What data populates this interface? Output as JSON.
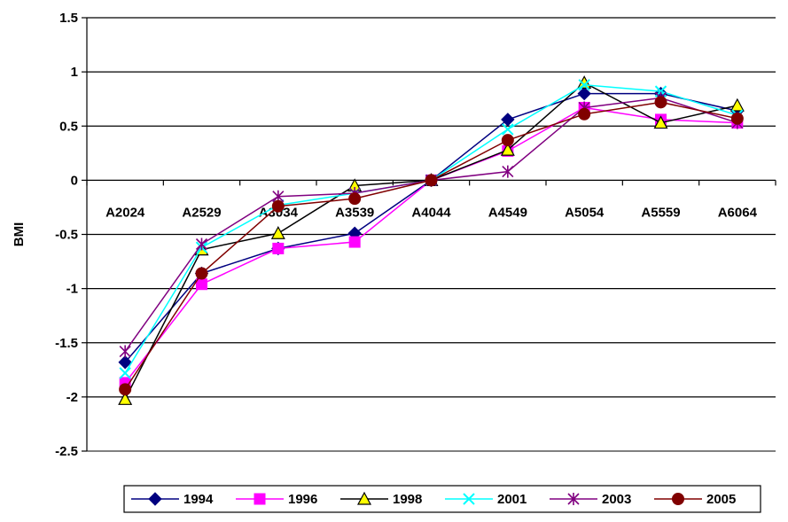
{
  "chart_data": {
    "type": "line",
    "title": "",
    "xlabel": "",
    "ylabel": "BMI",
    "ylim": [
      -2.5,
      1.5
    ],
    "yticks": [
      1.5,
      1,
      0.5,
      0,
      -0.5,
      -1,
      -1.5,
      -2,
      -2.5
    ],
    "ytick_labels": [
      "1.5",
      "1",
      "0.5",
      "0",
      "-0.5",
      "-1",
      "-1.5",
      "-2",
      "-2.5"
    ],
    "grid": "horizontal",
    "legend_position": "bottom",
    "categories": [
      "A2024",
      "A2529",
      "A3034",
      "A3539",
      "A4044",
      "A4549",
      "A5054",
      "A5559",
      "A6064"
    ],
    "series": [
      {
        "name": "1994",
        "color": "#000080",
        "marker": "diamond",
        "values": [
          -1.68,
          -0.86,
          -0.63,
          -0.49,
          0.0,
          0.56,
          0.8,
          0.8,
          0.64
        ]
      },
      {
        "name": "1996",
        "color": "#FF00FF",
        "marker": "square",
        "values": [
          -1.87,
          -0.96,
          -0.63,
          -0.57,
          0.0,
          0.27,
          0.67,
          0.56,
          0.53
        ]
      },
      {
        "name": "1998",
        "color": "#000000",
        "marker": "triangle",
        "values": [
          -2.02,
          -0.64,
          -0.49,
          -0.05,
          0.0,
          0.28,
          0.9,
          0.53,
          0.69
        ]
      },
      {
        "name": "2001",
        "color": "#00FFFF",
        "marker": "x",
        "values": [
          -1.78,
          -0.62,
          -0.23,
          -0.12,
          0.0,
          0.47,
          0.88,
          0.82,
          0.6
        ]
      },
      {
        "name": "2003",
        "color": "#800080",
        "marker": "star",
        "values": [
          -1.58,
          -0.59,
          -0.15,
          -0.12,
          0.0,
          0.08,
          0.67,
          0.76,
          0.53
        ]
      },
      {
        "name": "2005",
        "color": "#800000",
        "marker": "circle",
        "values": [
          -1.93,
          -0.86,
          -0.24,
          -0.17,
          0.0,
          0.37,
          0.61,
          0.72,
          0.57
        ]
      }
    ]
  }
}
